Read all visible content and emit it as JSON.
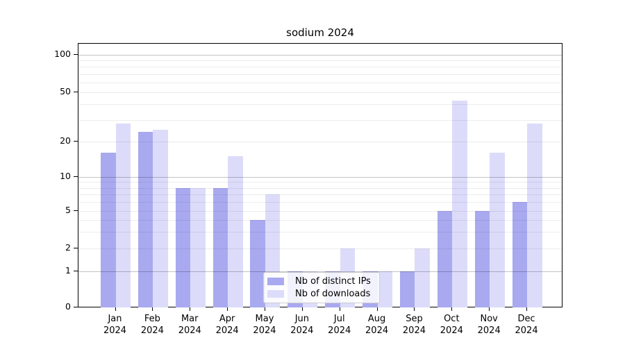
{
  "chart_data": {
    "type": "bar",
    "title": "sodium 2024",
    "categories": [
      "Jan 2024",
      "Feb 2024",
      "Mar 2024",
      "Apr 2024",
      "May 2024",
      "Jun 2024",
      "Jul 2024",
      "Aug 2024",
      "Sep 2024",
      "Oct 2024",
      "Nov 2024",
      "Dec 2024"
    ],
    "series": [
      {
        "name": "Nb of distinct IPs",
        "color": "#a9a9f0",
        "values": [
          16,
          24,
          8,
          8,
          4,
          1,
          1,
          1,
          1,
          5,
          5,
          6
        ]
      },
      {
        "name": "Nb of downloads",
        "color": "#dcdcfa",
        "values": [
          28,
          25,
          8,
          15,
          7,
          1,
          2,
          1,
          2,
          43,
          16,
          28
        ]
      }
    ],
    "yscale": "log",
    "yticks": [
      0,
      1,
      2,
      5,
      10,
      20,
      50,
      100
    ],
    "minor_grid_values": [
      2,
      3,
      4,
      5,
      6,
      7,
      8,
      9,
      20,
      30,
      40,
      50,
      60,
      70,
      80,
      90
    ],
    "major_grid_values": [
      1,
      10,
      100
    ],
    "grid": true,
    "legend_position": "lower center",
    "colors": {
      "distinct_ips_bar": "#a9a9f0",
      "downloads_bar": "#dcdcfa",
      "spine": "#000000",
      "major_grid": "#c2c2c2",
      "minor_grid": "#ececec",
      "background": "#ffffff"
    }
  }
}
